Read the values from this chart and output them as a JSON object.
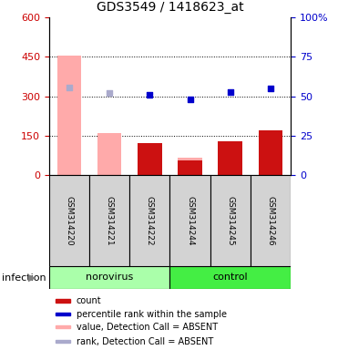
{
  "title": "GDS3549 / 1418623_at",
  "samples": [
    "GSM314220",
    "GSM314221",
    "GSM314222",
    "GSM314244",
    "GSM314245",
    "GSM314246"
  ],
  "bar_dark_values": [
    null,
    null,
    120,
    55,
    130,
    170
  ],
  "bar_light_values": [
    455,
    158,
    null,
    65,
    null,
    null
  ],
  "dark_bar_color": "#cc1111",
  "light_bar_color": "#ffaaaa",
  "blue_dark_points": [
    null,
    null,
    305,
    288,
    315,
    330
  ],
  "blue_light_point_0": [
    335,
    null,
    null,
    null,
    null,
    null
  ],
  "blue_light_square_1": [
    null,
    313,
    null,
    null,
    null,
    null
  ],
  "dark_blue": "#0000cc",
  "light_blue": "#aaaacc",
  "ylim_left": [
    0,
    600
  ],
  "ylim_right": [
    0,
    100
  ],
  "yticks_left": [
    0,
    150,
    300,
    450,
    600
  ],
  "ytick_labels_left": [
    "0",
    "150",
    "300",
    "450",
    "600"
  ],
  "yticks_right": [
    0,
    25,
    50,
    75,
    100
  ],
  "ytick_labels_right": [
    "0",
    "25",
    "50",
    "75",
    "100%"
  ],
  "left_tick_color": "#cc0000",
  "right_tick_color": "#0000cc",
  "norovirus_color": "#aaffaa",
  "control_color": "#44ee44",
  "legend_items": [
    {
      "label": "count",
      "color": "#cc1111"
    },
    {
      "label": "percentile rank within the sample",
      "color": "#0000cc"
    },
    {
      "label": "value, Detection Call = ABSENT",
      "color": "#ffaaaa"
    },
    {
      "label": "rank, Detection Call = ABSENT",
      "color": "#aaaacc"
    }
  ]
}
